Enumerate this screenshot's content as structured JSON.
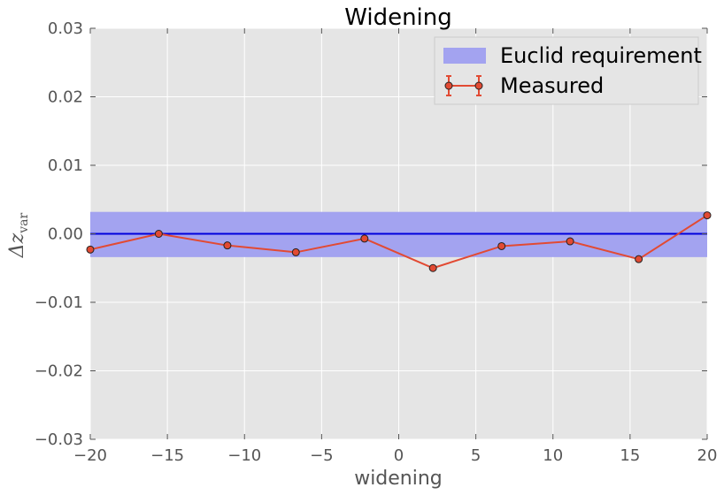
{
  "chart_data": {
    "type": "line",
    "title": "Widening",
    "xlabel": "widening",
    "ylabel": "Δz",
    "ylabel_subscript": "var",
    "xlim": [
      -20,
      20
    ],
    "ylim": [
      -0.03,
      0.03
    ],
    "x_ticks": [
      -20,
      -15,
      -10,
      -5,
      0,
      5,
      10,
      15,
      20
    ],
    "x_tick_labels": [
      "−20",
      "−15",
      "−10",
      "−5",
      "0",
      "5",
      "10",
      "15",
      "20"
    ],
    "y_ticks": [
      -0.03,
      -0.02,
      -0.01,
      0.0,
      0.01,
      0.02,
      0.03
    ],
    "y_tick_labels": [
      "−0.03",
      "−0.02",
      "−0.01",
      "0.00",
      "0.01",
      "0.02",
      "0.03"
    ],
    "grid": true,
    "legend_position": "top-right",
    "requirement_band": {
      "name": "Euclid requirement",
      "y_min": -0.0034,
      "y_max": 0.0032,
      "color": "#a3a3f0"
    },
    "reference_line": {
      "y": 0.0,
      "color": "#0000dd"
    },
    "series": [
      {
        "name": "Measured",
        "color": "#e24a33",
        "x": [
          -20,
          -15.56,
          -11.11,
          -6.67,
          -2.22,
          2.22,
          6.67,
          11.11,
          15.56,
          20
        ],
        "y": [
          -0.0023,
          0.0,
          -0.0017,
          -0.0027,
          -0.0007,
          -0.005,
          -0.0018,
          -0.0011,
          -0.0037,
          0.0027
        ]
      }
    ],
    "colors": {
      "axes_bg": "#e5e5e5",
      "grid": "#ffffff"
    }
  }
}
